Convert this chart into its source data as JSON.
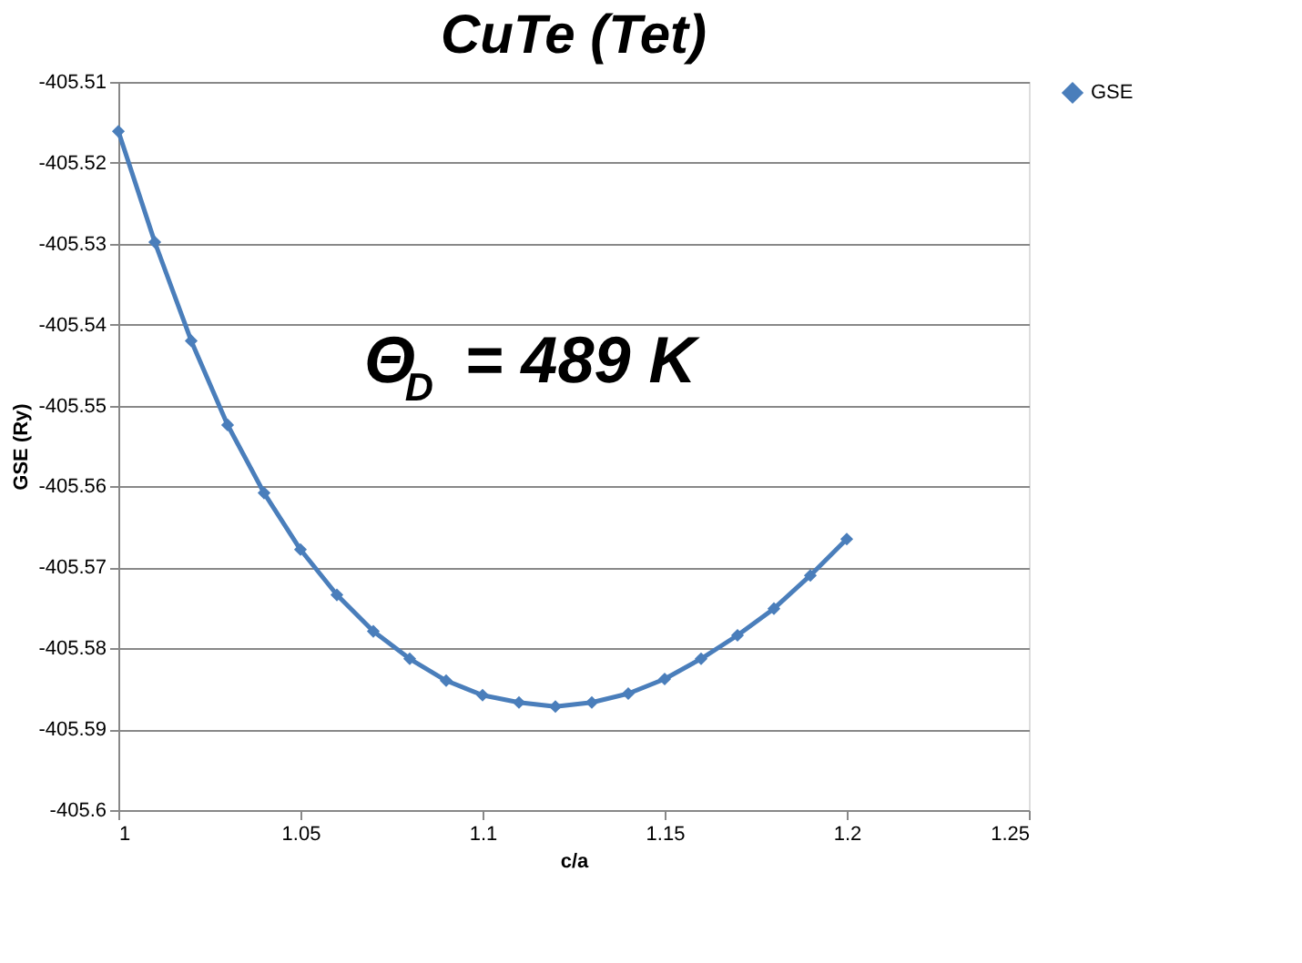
{
  "chart_data": {
    "type": "line",
    "title": "CuTe (Tet)",
    "xlabel": "c/a",
    "ylabel": "GSE (Ry)",
    "annotations": [
      "Θ$_{D}$ = 489 K"
    ],
    "x": [
      1.0,
      1.01,
      1.02,
      1.03,
      1.04,
      1.05,
      1.06,
      1.07,
      1.08,
      1.09,
      1.1,
      1.11,
      1.12,
      1.13,
      1.14,
      1.15,
      1.16,
      1.17,
      1.18,
      1.19,
      1.2
    ],
    "series": [
      {
        "name": "GSE",
        "color": "#4a7ebb",
        "values": [
          -405.5161,
          -405.5298,
          -405.542,
          -405.5524,
          -405.5608,
          -405.5678,
          -405.5734,
          -405.5779,
          -405.5813,
          -405.584,
          -405.5858,
          -405.5867,
          -405.5872,
          -405.5867,
          -405.5856,
          -405.5838,
          -405.5813,
          -405.5784,
          -405.5751,
          -405.571,
          -405.5665
        ]
      }
    ],
    "xlim": [
      1,
      1.25
    ],
    "xticks": [
      1,
      1.05,
      1.1,
      1.15,
      1.2,
      1.25
    ],
    "ylim": [
      -405.6,
      -405.51
    ],
    "yticks": [
      -405.6,
      -405.59,
      -405.58,
      -405.57,
      -405.56,
      -405.55,
      -405.54,
      -405.53,
      -405.52,
      -405.51
    ],
    "grid": "y",
    "legend": "right",
    "marker": "diamond",
    "line_style": "solid"
  }
}
